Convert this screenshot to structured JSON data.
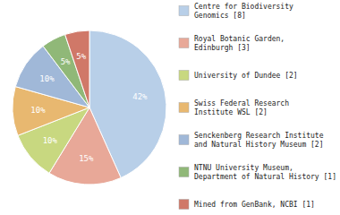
{
  "chart_data": {
    "type": "pie",
    "categories": [
      "Centre for Biodiversity\nGenomics [8]",
      "Royal Botanic Garden,\nEdinburgh [3]",
      "University of Dundee [2]",
      "Swiss Federal Research\nInstitute WSL [2]",
      "Senckenberg Research Institute\nand Natural History Museum [2]",
      "NTNU University Museum,\nDepartment of Natural History [1]",
      "Mined from GenBank, NCBI [1]"
    ],
    "values": [
      42,
      15,
      10,
      10,
      10,
      5,
      5
    ],
    "value_labels": [
      "42%",
      "15%",
      "10%",
      "10%",
      "10%",
      "5%",
      "5%"
    ],
    "data_labels": true,
    "colors": [
      "#b8cfe8",
      "#e8a898",
      "#c8d880",
      "#e8b870",
      "#a0b8d8",
      "#90b878",
      "#d07868"
    ],
    "legend": "right"
  }
}
